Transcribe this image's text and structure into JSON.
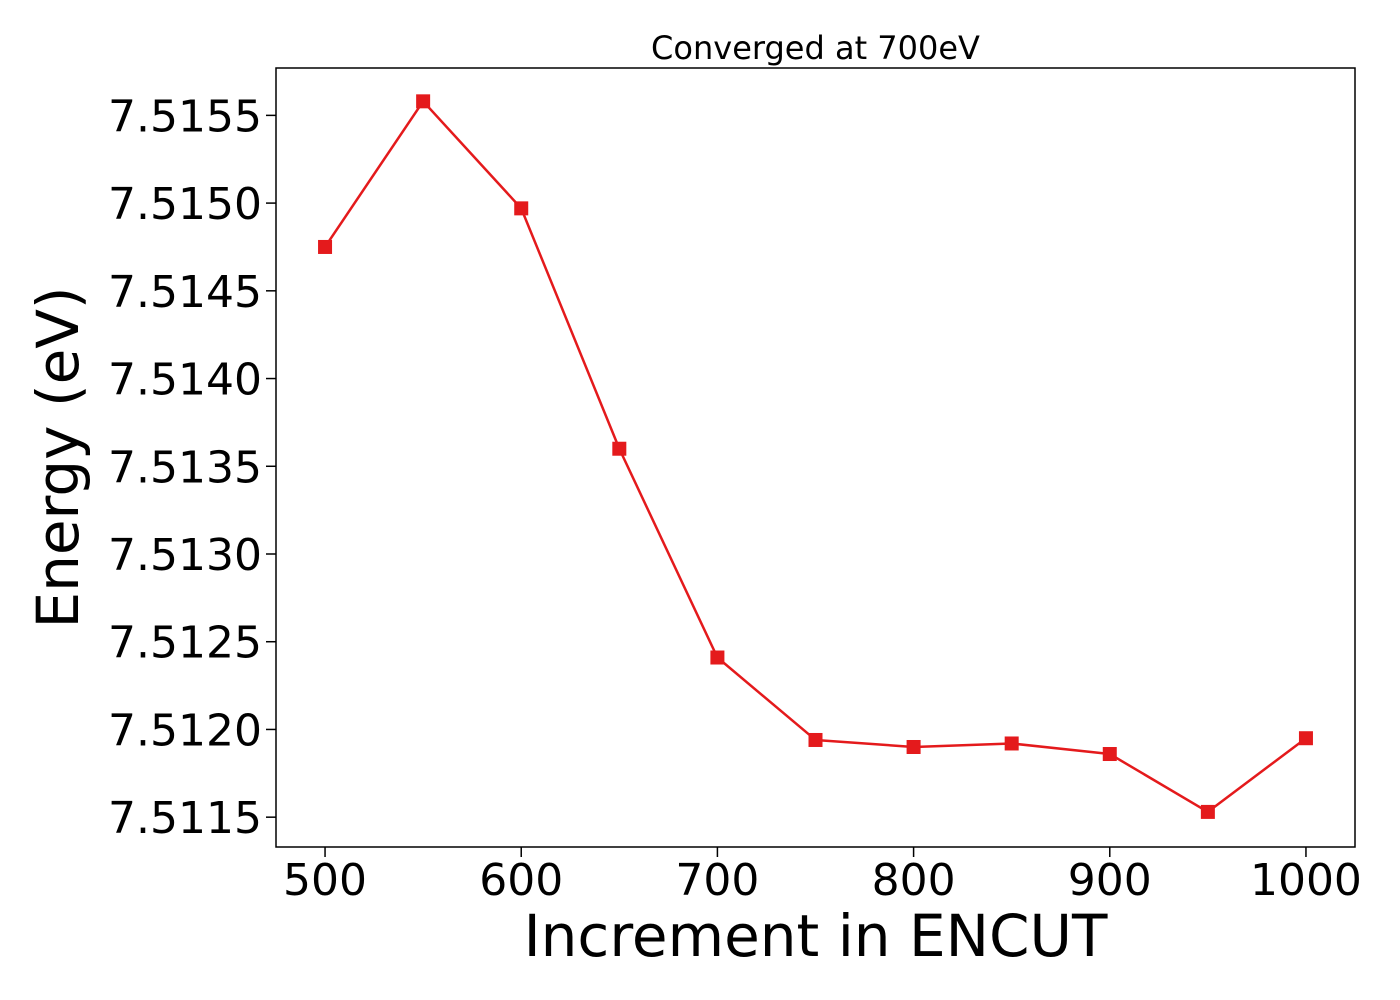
{
  "chart_data": {
    "type": "line",
    "title": "Converged at 700eV",
    "xlabel": "Increment in ENCUT",
    "ylabel": "Energy (eV)",
    "xlim": [
      475,
      1025
    ],
    "ylim": [
      7.51133,
      7.51577
    ],
    "x_ticks": [
      500,
      600,
      700,
      800,
      900,
      1000
    ],
    "x_tick_labels": [
      "500",
      "600",
      "700",
      "800",
      "900",
      "1000"
    ],
    "y_ticks": [
      7.5115,
      7.512,
      7.5125,
      7.513,
      7.5135,
      7.514,
      7.5145,
      7.515,
      7.5155
    ],
    "y_tick_labels": [
      "7.5115",
      "7.5120",
      "7.5125",
      "7.5130",
      "7.5135",
      "7.5140",
      "7.5145",
      "7.5150",
      "7.5155"
    ],
    "grid": false,
    "series": [
      {
        "color": "#e41a1c",
        "marker": "square",
        "x": [
          500,
          550,
          600,
          650,
          700,
          750,
          800,
          850,
          900,
          950,
          1000
        ],
        "y": [
          7.51475,
          7.51558,
          7.51497,
          7.5136,
          7.51241,
          7.51194,
          7.5119,
          7.51192,
          7.51186,
          7.51153,
          7.51195
        ]
      }
    ]
  }
}
